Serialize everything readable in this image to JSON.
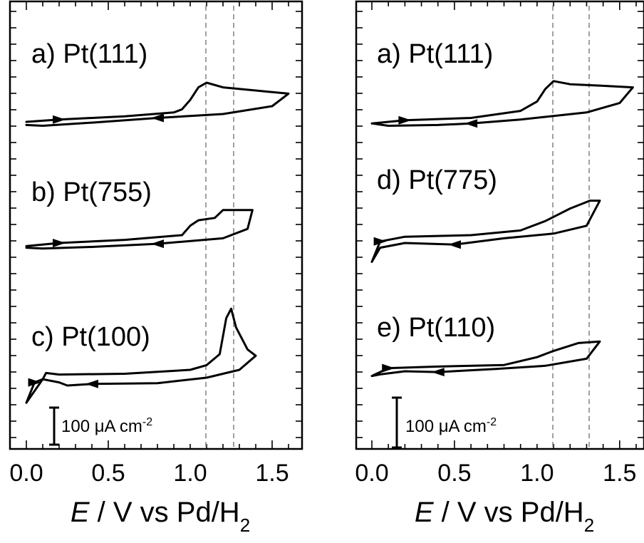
{
  "chart_data": [
    {
      "type": "line",
      "xlim": [
        -0.1,
        1.65
      ],
      "xticks": [
        "0.0",
        "0.5",
        "1.0",
        "1.5"
      ],
      "xlabel_italic": "E",
      "xlabel_rest": " / V vs Pd/H",
      "xlabel_sub": "2",
      "reference_lines_x": [
        1.08,
        1.24
      ],
      "scale_bar": {
        "label_value": "100 ",
        "label_unit": "μA cm",
        "label_exp": "-2"
      },
      "series": [
        {
          "name": "a) Pt(111)",
          "anodic": [
            [
              0.0,
              -0.5
            ],
            [
              0.2,
              -0.35
            ],
            [
              0.6,
              -0.15
            ],
            [
              0.9,
              0.1
            ],
            [
              0.95,
              0.3
            ],
            [
              1.0,
              0.9
            ],
            [
              1.05,
              1.7
            ],
            [
              1.1,
              2.0
            ],
            [
              1.2,
              1.7
            ],
            [
              1.4,
              1.5
            ],
            [
              1.6,
              1.3
            ]
          ],
          "cathodic": [
            [
              1.6,
              1.3
            ],
            [
              1.5,
              0.5
            ],
            [
              1.2,
              0.0
            ],
            [
              0.8,
              -0.25
            ],
            [
              0.4,
              -0.55
            ],
            [
              0.1,
              -0.75
            ],
            [
              0.0,
              -0.7
            ]
          ]
        },
        {
          "name": "b) Pt(755)",
          "anodic": [
            [
              0.0,
              -0.7
            ],
            [
              0.2,
              -0.5
            ],
            [
              0.6,
              -0.3
            ],
            [
              0.95,
              0.0
            ],
            [
              1.0,
              0.6
            ],
            [
              1.05,
              0.95
            ],
            [
              1.15,
              1.1
            ],
            [
              1.2,
              1.6
            ],
            [
              1.25,
              1.6
            ],
            [
              1.38,
              1.6
            ]
          ],
          "cathodic": [
            [
              1.38,
              1.6
            ],
            [
              1.35,
              0.4
            ],
            [
              1.2,
              -0.2
            ],
            [
              0.8,
              -0.55
            ],
            [
              0.4,
              -0.75
            ],
            [
              0.1,
              -0.85
            ],
            [
              0.0,
              -0.8
            ]
          ]
        },
        {
          "name": "c) Pt(100)",
          "anodic": [
            [
              0.0,
              -1.6
            ],
            [
              0.05,
              -0.3
            ],
            [
              0.1,
              -0.1
            ],
            [
              0.12,
              0.3
            ],
            [
              0.2,
              0.2
            ],
            [
              0.6,
              0.25
            ],
            [
              1.0,
              0.5
            ],
            [
              1.1,
              0.8
            ],
            [
              1.18,
              1.5
            ],
            [
              1.22,
              3.8
            ],
            [
              1.25,
              4.4
            ],
            [
              1.28,
              3.2
            ],
            [
              1.35,
              1.8
            ],
            [
              1.4,
              1.4
            ]
          ],
          "cathodic": [
            [
              1.4,
              1.4
            ],
            [
              1.3,
              0.5
            ],
            [
              1.1,
              0.0
            ],
            [
              0.8,
              -0.35
            ],
            [
              0.4,
              -0.4
            ],
            [
              0.25,
              -0.5
            ],
            [
              0.2,
              -0.3
            ],
            [
              0.1,
              -0.1
            ],
            [
              0.0,
              -1.6
            ]
          ]
        },
        {
          "name": "a) Pt(111)",
          "anodic": [
            [
              0.0,
              -0.6
            ],
            [
              0.2,
              -0.4
            ],
            [
              0.6,
              -0.25
            ],
            [
              0.9,
              0.2
            ],
            [
              1.0,
              0.8
            ],
            [
              1.05,
              1.6
            ],
            [
              1.1,
              2.1
            ],
            [
              1.2,
              1.9
            ],
            [
              1.4,
              1.8
            ],
            [
              1.58,
              1.7
            ]
          ],
          "cathodic": [
            [
              1.58,
              1.7
            ],
            [
              1.5,
              0.7
            ],
            [
              1.3,
              0.1
            ],
            [
              0.9,
              -0.35
            ],
            [
              0.6,
              -0.6
            ],
            [
              0.4,
              -0.7
            ],
            [
              0.1,
              -0.75
            ],
            [
              0.0,
              -0.6
            ]
          ]
        },
        {
          "name": "d) Pt(775)",
          "anodic": [
            [
              0.0,
              -1.7
            ],
            [
              0.05,
              -0.4
            ],
            [
              0.2,
              -0.1
            ],
            [
              0.6,
              0.0
            ],
            [
              0.9,
              0.3
            ],
            [
              1.05,
              0.9
            ],
            [
              1.2,
              1.7
            ],
            [
              1.32,
              2.2
            ],
            [
              1.38,
              2.2
            ]
          ],
          "cathodic": [
            [
              1.38,
              2.2
            ],
            [
              1.3,
              0.6
            ],
            [
              1.1,
              0.1
            ],
            [
              0.8,
              -0.2
            ],
            [
              0.5,
              -0.6
            ],
            [
              0.2,
              -0.5
            ],
            [
              0.05,
              -0.8
            ],
            [
              0.0,
              -1.7
            ]
          ]
        },
        {
          "name": "e) Pt(110)",
          "anodic": [
            [
              0.0,
              -0.8
            ],
            [
              0.1,
              -0.3
            ],
            [
              0.4,
              -0.2
            ],
            [
              0.8,
              -0.1
            ],
            [
              1.0,
              0.4
            ],
            [
              1.1,
              0.8
            ],
            [
              1.25,
              1.3
            ],
            [
              1.38,
              1.4
            ]
          ],
          "cathodic": [
            [
              1.38,
              1.4
            ],
            [
              1.3,
              0.3
            ],
            [
              1.05,
              -0.15
            ],
            [
              0.75,
              -0.35
            ],
            [
              0.4,
              -0.55
            ],
            [
              0.2,
              -0.5
            ],
            [
              0.05,
              -0.7
            ],
            [
              0.0,
              -0.8
            ]
          ]
        }
      ]
    }
  ]
}
